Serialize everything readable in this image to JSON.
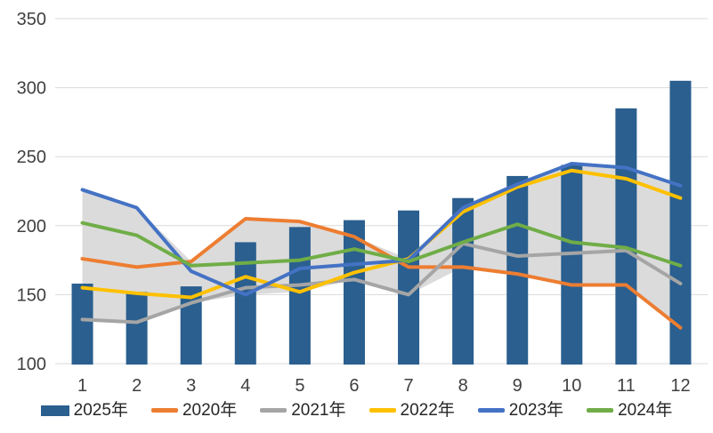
{
  "chart_data": {
    "type": "bar",
    "subtype": "combo-bar-line",
    "title": "",
    "xlabel": "",
    "ylabel": "",
    "categories": [
      "1",
      "2",
      "3",
      "4",
      "5",
      "6",
      "7",
      "8",
      "9",
      "10",
      "11",
      "12"
    ],
    "ylim": [
      100,
      350
    ],
    "yticks": [
      100,
      150,
      200,
      250,
      300,
      350
    ],
    "grid": true,
    "legend_position": "bottom",
    "bar_series": {
      "name": "2025年",
      "color": "#2A5F8F",
      "values": [
        158,
        152,
        156,
        188,
        199,
        204,
        211,
        220,
        236,
        244,
        285,
        305
      ]
    },
    "line_series": [
      {
        "name": "2020年",
        "color": "#ED7D31",
        "values": [
          176,
          170,
          174,
          205,
          203,
          192,
          170,
          170,
          165,
          157,
          157,
          126
        ]
      },
      {
        "name": "2021年",
        "color": "#A5A5A5",
        "values": [
          132,
          130,
          144,
          155,
          157,
          161,
          150,
          187,
          178,
          180,
          182,
          158
        ]
      },
      {
        "name": "2022年",
        "color": "#FFC000",
        "values": [
          155,
          151,
          148,
          163,
          152,
          166,
          176,
          210,
          228,
          240,
          234,
          220
        ]
      },
      {
        "name": "2023年",
        "color": "#4472C4",
        "values": [
          226,
          213,
          167,
          150,
          169,
          172,
          175,
          213,
          230,
          245,
          242,
          229
        ]
      },
      {
        "name": "2024年",
        "color": "#70AD47",
        "values": [
          202,
          193,
          171,
          173,
          175,
          183,
          174,
          188,
          201,
          188,
          184,
          171
        ]
      }
    ],
    "band": {
      "description": "light gray area spanning min to max of the five year lines per month",
      "color": "#DBDBDB"
    },
    "axis": {
      "tick_color": "#404040",
      "gridline_color": "#D9D9D9"
    }
  }
}
